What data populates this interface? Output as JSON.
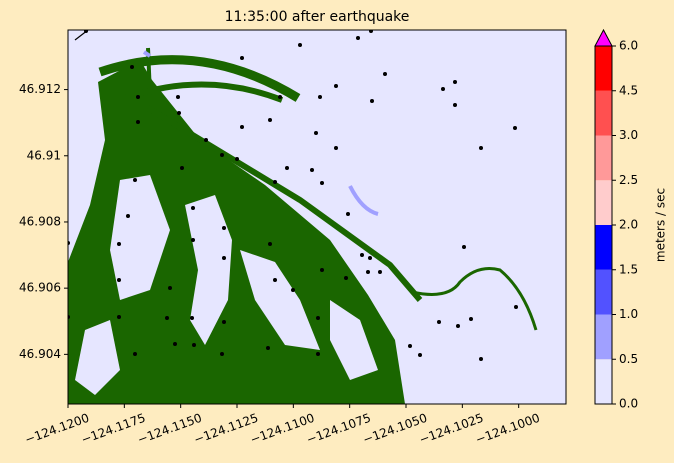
{
  "chart_data": {
    "type": "map",
    "title": "11:35:00 after earthquake",
    "xlim": [
      -124.12,
      -124.0979
    ],
    "ylim": [
      46.9025,
      46.9138
    ],
    "xticks": [
      {
        "value": -124.12,
        "label": "−124.1200"
      },
      {
        "value": -124.1175,
        "label": "−124.1175"
      },
      {
        "value": -124.115,
        "label": "−124.1150"
      },
      {
        "value": -124.1125,
        "label": "−124.1125"
      },
      {
        "value": -124.11,
        "label": "−124.1100"
      },
      {
        "value": -124.1075,
        "label": "−124.1075"
      },
      {
        "value": -124.105,
        "label": "−124.1050"
      },
      {
        "value": -124.1025,
        "label": "−124.1025"
      },
      {
        "value": -124.1,
        "label": "−124.1000"
      }
    ],
    "yticks": [
      46.904,
      46.906,
      46.908,
      46.91,
      46.912
    ],
    "colorbar": {
      "label": "meters / sec",
      "ticks": [
        {
          "value": 0,
          "label": "0.0"
        },
        {
          "value": 0.5,
          "label": "0.5"
        },
        {
          "value": 1,
          "label": "1.0"
        },
        {
          "value": 1.5,
          "label": "1.5"
        },
        {
          "value": 2,
          "label": "2.0"
        },
        {
          "value": 2.5,
          "label": "2.5"
        },
        {
          "value": 3,
          "label": "3.0"
        },
        {
          "value": 4.5,
          "label": "4.5"
        },
        {
          "value": 6,
          "label": "6.0"
        }
      ],
      "colors": [
        "#e6e6ff",
        "#a0a0ff",
        "#5252ff",
        "#0000ff",
        "#ffcccc",
        "#ff9999",
        "#ff5050",
        "#ff0000"
      ],
      "extend_color": "#ff00ff"
    }
  }
}
